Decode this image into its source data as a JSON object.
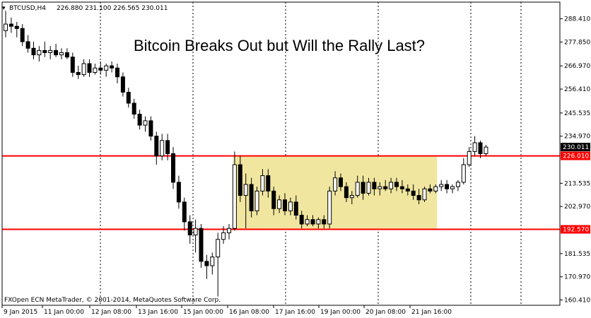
{
  "header": {
    "symbol": "BTCUSD,H4",
    "ohlc": "226.880 231.100 226.565 230.011"
  },
  "chart_data": {
    "type": "candlestick",
    "title": "Bitcoin Breaks Out but Will the Rally Last?",
    "footer": "FXOpen ECN MetaTrader, © 2001-2014, MetaQuotes Software Corp.",
    "ylim": [
      158.0,
      296.0
    ],
    "yticks": [
      "288.410",
      "277.850",
      "266.970",
      "256.410",
      "245.535",
      "234.970",
      "213.535",
      "202.970",
      "181.535",
      "170.970",
      "160.410"
    ],
    "xticks": [
      "9 Jan 2015",
      "11 Jan 00:00",
      "12 Jan 08:00",
      "13 Jan 16:00",
      "15 Jan 00:00",
      "16 Jan 08:00",
      "17 Jan 16:00",
      "19 Jan 00:00",
      "20 Jan 08:00",
      "21 Jan 16:00"
    ],
    "current_price": "230.011",
    "resistance": {
      "value": 226.01,
      "label": "226.010",
      "color": "#ff0000"
    },
    "support": {
      "value": 192.57,
      "label": "192.570",
      "color": "#ff0000"
    },
    "consolidation_box": {
      "from_candle": 41,
      "to_candle": 77,
      "high": 226.01,
      "low": 192.57,
      "color": "#f0e6a0"
    },
    "candles": [
      {
        "o": 283,
        "h": 292,
        "l": 280,
        "c": 286
      },
      {
        "o": 286,
        "h": 289,
        "l": 282,
        "c": 285
      },
      {
        "o": 285,
        "h": 287,
        "l": 280,
        "c": 284
      },
      {
        "o": 284,
        "h": 286,
        "l": 276,
        "c": 278
      },
      {
        "o": 278,
        "h": 281,
        "l": 273,
        "c": 275
      },
      {
        "o": 275,
        "h": 278,
        "l": 270,
        "c": 272
      },
      {
        "o": 272,
        "h": 276,
        "l": 269,
        "c": 274
      },
      {
        "o": 274,
        "h": 278,
        "l": 271,
        "c": 273
      },
      {
        "o": 273,
        "h": 276,
        "l": 270,
        "c": 274
      },
      {
        "o": 274,
        "h": 277,
        "l": 271,
        "c": 272
      },
      {
        "o": 272,
        "h": 275,
        "l": 270,
        "c": 273
      },
      {
        "o": 273,
        "h": 275,
        "l": 270,
        "c": 271
      },
      {
        "o": 271,
        "h": 273,
        "l": 262,
        "c": 264
      },
      {
        "o": 264,
        "h": 267,
        "l": 261,
        "c": 263
      },
      {
        "o": 263,
        "h": 270,
        "l": 262,
        "c": 268
      },
      {
        "o": 268,
        "h": 270,
        "l": 262,
        "c": 264
      },
      {
        "o": 264,
        "h": 268,
        "l": 263,
        "c": 266
      },
      {
        "o": 266,
        "h": 269,
        "l": 263,
        "c": 265
      },
      {
        "o": 265,
        "h": 268,
        "l": 262,
        "c": 267
      },
      {
        "o": 267,
        "h": 269,
        "l": 264,
        "c": 266
      },
      {
        "o": 266,
        "h": 268,
        "l": 259,
        "c": 262
      },
      {
        "o": 262,
        "h": 264,
        "l": 253,
        "c": 255
      },
      {
        "o": 255,
        "h": 257,
        "l": 248,
        "c": 250
      },
      {
        "o": 250,
        "h": 252,
        "l": 243,
        "c": 245
      },
      {
        "o": 245,
        "h": 247,
        "l": 238,
        "c": 240
      },
      {
        "o": 240,
        "h": 244,
        "l": 237,
        "c": 242
      },
      {
        "o": 242,
        "h": 244,
        "l": 233,
        "c": 235
      },
      {
        "o": 235,
        "h": 237,
        "l": 222,
        "c": 226
      },
      {
        "o": 226,
        "h": 236,
        "l": 224,
        "c": 233
      },
      {
        "o": 233,
        "h": 236,
        "l": 224,
        "c": 227
      },
      {
        "o": 227,
        "h": 230,
        "l": 211,
        "c": 214
      },
      {
        "o": 214,
        "h": 217,
        "l": 202,
        "c": 205
      },
      {
        "o": 205,
        "h": 207,
        "l": 192,
        "c": 196
      },
      {
        "o": 196,
        "h": 199,
        "l": 186,
        "c": 190
      },
      {
        "o": 190,
        "h": 197,
        "l": 182,
        "c": 193
      },
      {
        "o": 193,
        "h": 195,
        "l": 175,
        "c": 178
      },
      {
        "o": 178,
        "h": 181,
        "l": 170,
        "c": 176
      },
      {
        "o": 176,
        "h": 182,
        "l": 172,
        "c": 180
      },
      {
        "o": 180,
        "h": 191,
        "l": 162,
        "c": 188
      },
      {
        "o": 188,
        "h": 194,
        "l": 186,
        "c": 191
      },
      {
        "o": 191,
        "h": 195,
        "l": 188,
        "c": 193
      },
      {
        "o": 193,
        "h": 228,
        "l": 192,
        "c": 222
      },
      {
        "o": 222,
        "h": 226,
        "l": 205,
        "c": 208
      },
      {
        "o": 208,
        "h": 218,
        "l": 193,
        "c": 213
      },
      {
        "o": 213,
        "h": 216,
        "l": 198,
        "c": 201
      },
      {
        "o": 201,
        "h": 212,
        "l": 199,
        "c": 210
      },
      {
        "o": 210,
        "h": 220,
        "l": 208,
        "c": 217
      },
      {
        "o": 217,
        "h": 220,
        "l": 207,
        "c": 210
      },
      {
        "o": 210,
        "h": 212,
        "l": 199,
        "c": 202
      },
      {
        "o": 202,
        "h": 208,
        "l": 200,
        "c": 206
      },
      {
        "o": 206,
        "h": 209,
        "l": 199,
        "c": 201
      },
      {
        "o": 201,
        "h": 207,
        "l": 199,
        "c": 205
      },
      {
        "o": 205,
        "h": 208,
        "l": 197,
        "c": 199
      },
      {
        "o": 199,
        "h": 201,
        "l": 193,
        "c": 195
      },
      {
        "o": 195,
        "h": 199,
        "l": 194,
        "c": 197
      },
      {
        "o": 197,
        "h": 199,
        "l": 194,
        "c": 195
      },
      {
        "o": 195,
        "h": 198,
        "l": 193,
        "c": 197
      },
      {
        "o": 197,
        "h": 199,
        "l": 193,
        "c": 195
      },
      {
        "o": 195,
        "h": 212,
        "l": 193,
        "c": 210
      },
      {
        "o": 210,
        "h": 219,
        "l": 208,
        "c": 216
      },
      {
        "o": 216,
        "h": 218,
        "l": 210,
        "c": 212
      },
      {
        "o": 212,
        "h": 214,
        "l": 205,
        "c": 207
      },
      {
        "o": 207,
        "h": 210,
        "l": 204,
        "c": 208
      },
      {
        "o": 208,
        "h": 217,
        "l": 207,
        "c": 214
      },
      {
        "o": 214,
        "h": 217,
        "l": 206,
        "c": 209
      },
      {
        "o": 209,
        "h": 216,
        "l": 208,
        "c": 214
      },
      {
        "o": 214,
        "h": 216,
        "l": 208,
        "c": 211
      },
      {
        "o": 211,
        "h": 214,
        "l": 208,
        "c": 212
      },
      {
        "o": 212,
        "h": 215,
        "l": 210,
        "c": 211
      },
      {
        "o": 211,
        "h": 216,
        "l": 209,
        "c": 214
      },
      {
        "o": 214,
        "h": 216,
        "l": 210,
        "c": 212
      },
      {
        "o": 212,
        "h": 215,
        "l": 209,
        "c": 211
      },
      {
        "o": 211,
        "h": 213,
        "l": 208,
        "c": 210
      },
      {
        "o": 210,
        "h": 213,
        "l": 206,
        "c": 208
      },
      {
        "o": 208,
        "h": 211,
        "l": 204,
        "c": 206
      },
      {
        "o": 206,
        "h": 212,
        "l": 205,
        "c": 211
      },
      {
        "o": 211,
        "h": 213,
        "l": 209,
        "c": 210
      },
      {
        "o": 210,
        "h": 213,
        "l": 209,
        "c": 212
      },
      {
        "o": 212,
        "h": 215,
        "l": 210,
        "c": 213
      },
      {
        "o": 213,
        "h": 215,
        "l": 209,
        "c": 211
      },
      {
        "o": 211,
        "h": 213,
        "l": 209,
        "c": 212
      },
      {
        "o": 212,
        "h": 215,
        "l": 210,
        "c": 214
      },
      {
        "o": 214,
        "h": 225,
        "l": 213,
        "c": 222
      },
      {
        "o": 222,
        "h": 230,
        "l": 221,
        "c": 228
      },
      {
        "o": 228,
        "h": 235,
        "l": 226,
        "c": 232
      },
      {
        "o": 232,
        "h": 233,
        "l": 225,
        "c": 227
      },
      {
        "o": 227,
        "h": 231,
        "l": 226,
        "c": 230
      }
    ]
  }
}
